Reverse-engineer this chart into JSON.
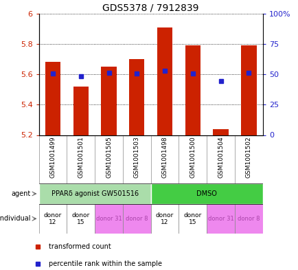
{
  "title": "GDS5378 / 7912839",
  "samples": [
    "GSM1001499",
    "GSM1001501",
    "GSM1001505",
    "GSM1001503",
    "GSM1001498",
    "GSM1001500",
    "GSM1001504",
    "GSM1001502"
  ],
  "bar_values": [
    5.68,
    5.52,
    5.65,
    5.7,
    5.91,
    5.79,
    5.24,
    5.79
  ],
  "percentile_y_values": [
    5.605,
    5.585,
    5.608,
    5.605,
    5.625,
    5.607,
    5.555,
    5.608
  ],
  "ymin": 5.2,
  "ymax": 6.0,
  "y_ticks": [
    5.2,
    5.4,
    5.6,
    5.8,
    6.0
  ],
  "y_tick_labels": [
    "5.2",
    "5.4",
    "5.6",
    "5.8",
    "6"
  ],
  "right_yticks": [
    0,
    25,
    50,
    75,
    100
  ],
  "right_ytick_labels": [
    "0",
    "25",
    "50",
    "75",
    "100%"
  ],
  "bar_color": "#cc2200",
  "dot_color": "#2222cc",
  "agent_groups": [
    {
      "label": "PPARδ agonist GW501516",
      "start": 0,
      "end": 4,
      "color": "#aaddaa"
    },
    {
      "label": "DMSO",
      "start": 4,
      "end": 8,
      "color": "#44cc44"
    }
  ],
  "individual_groups": [
    {
      "label": "donor\n12",
      "start": 0,
      "end": 1,
      "color": "#ffffff",
      "fontcolor": "black",
      "fontsize": 6.5
    },
    {
      "label": "donor\n15",
      "start": 1,
      "end": 2,
      "color": "#ffffff",
      "fontcolor": "black",
      "fontsize": 6.5
    },
    {
      "label": "donor 31",
      "start": 2,
      "end": 3,
      "color": "#ee88ee",
      "fontcolor": "#aa44aa",
      "fontsize": 6
    },
    {
      "label": "donor 8",
      "start": 3,
      "end": 4,
      "color": "#ee88ee",
      "fontcolor": "#aa44aa",
      "fontsize": 6
    },
    {
      "label": "donor\n12",
      "start": 4,
      "end": 5,
      "color": "#ffffff",
      "fontcolor": "black",
      "fontsize": 6.5
    },
    {
      "label": "donor\n15",
      "start": 5,
      "end": 6,
      "color": "#ffffff",
      "fontcolor": "black",
      "fontsize": 6.5
    },
    {
      "label": "donor 31",
      "start": 6,
      "end": 7,
      "color": "#ee88ee",
      "fontcolor": "#aa44aa",
      "fontsize": 6
    },
    {
      "label": "donor 8",
      "start": 7,
      "end": 8,
      "color": "#ee88ee",
      "fontcolor": "#aa44aa",
      "fontsize": 6
    }
  ],
  "legend_items": [
    {
      "color": "#cc2200",
      "label": "transformed count"
    },
    {
      "color": "#2222cc",
      "label": "percentile rank within the sample"
    }
  ],
  "tick_color_left": "#cc2200",
  "tick_color_right": "#2222cc",
  "figsize": [
    4.35,
    3.93
  ],
  "dpi": 100
}
